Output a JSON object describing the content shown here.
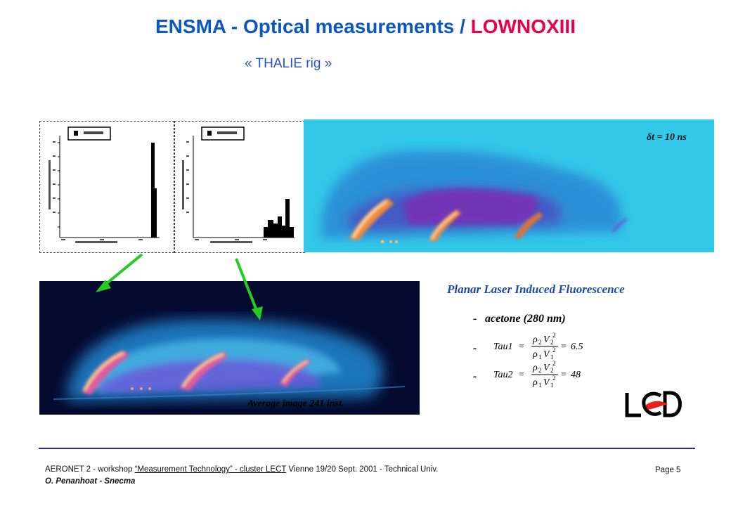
{
  "slide": {
    "title_main": "ENSMA - Optical measurements  / ",
    "title_accent": "LOWNOXIII",
    "subtitle": "« THALIE rig »",
    "dt_label": "δt = 10 ns",
    "avg_caption": "Average image 241 inst.",
    "plif_title": "Planar Laser Induced Fluorescence",
    "bullets": [
      {
        "marker": "-",
        "text": "acetone (280 nm)"
      },
      {
        "marker": "-"
      },
      {
        "marker": "-"
      }
    ],
    "equations": [
      {
        "lhs": "Tau1",
        "rhs": "6.5"
      },
      {
        "lhs": "Tau2",
        "rhs": "48"
      }
    ],
    "logo_text": "LCD"
  },
  "footer": {
    "line1_pre": "AERONET 2  - workshop ",
    "line1_link": "“Measurement Technology”  - cluster LECT",
    "line1_post": "  Vienne 19/20 Sept. 2001 - Technical Univ.",
    "line2": "O. Penanhoat - Snecma",
    "page": "Page 5"
  },
  "colors": {
    "title": "#0b57c2",
    "accent": "#e8004c",
    "arrow": "#22cc22",
    "plif_bg": "#33c8e8"
  }
}
